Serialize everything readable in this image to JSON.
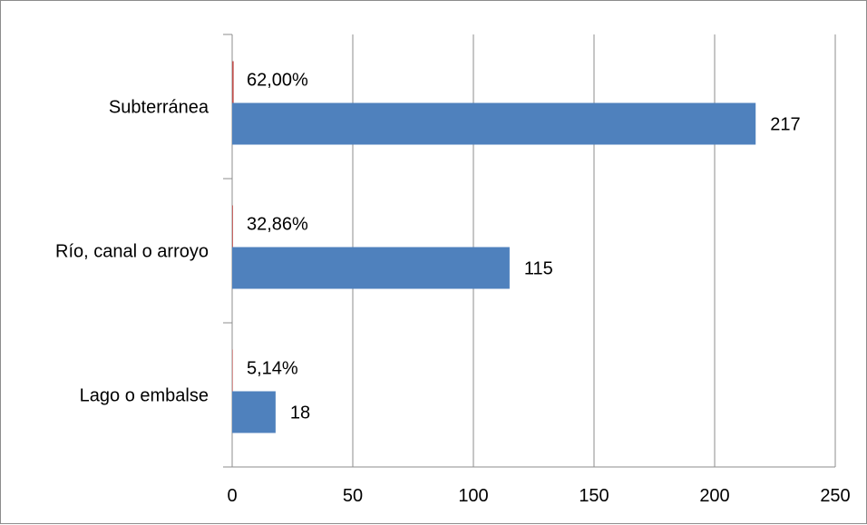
{
  "chart_data": {
    "type": "bar",
    "orientation": "horizontal",
    "categories": [
      "Lago o embalse",
      "Río, canal o arroyo",
      "Subterránea"
    ],
    "series": [
      {
        "values": [
          18,
          115,
          217
        ],
        "color": "#4f81bd",
        "value_labels": [
          "18",
          "115",
          "217"
        ]
      },
      {
        "values": [
          5.14,
          32.86,
          62.0
        ],
        "color": "#c0504d",
        "value_labels": [
          "5,14%",
          "32,86%",
          "62,00%"
        ]
      }
    ],
    "x_ticks": [
      "0",
      "50",
      "100",
      "150",
      "200",
      "250"
    ],
    "xlim": [
      0,
      250
    ],
    "grid": true,
    "legend": "none",
    "title": "",
    "xlabel": "",
    "ylabel": ""
  }
}
